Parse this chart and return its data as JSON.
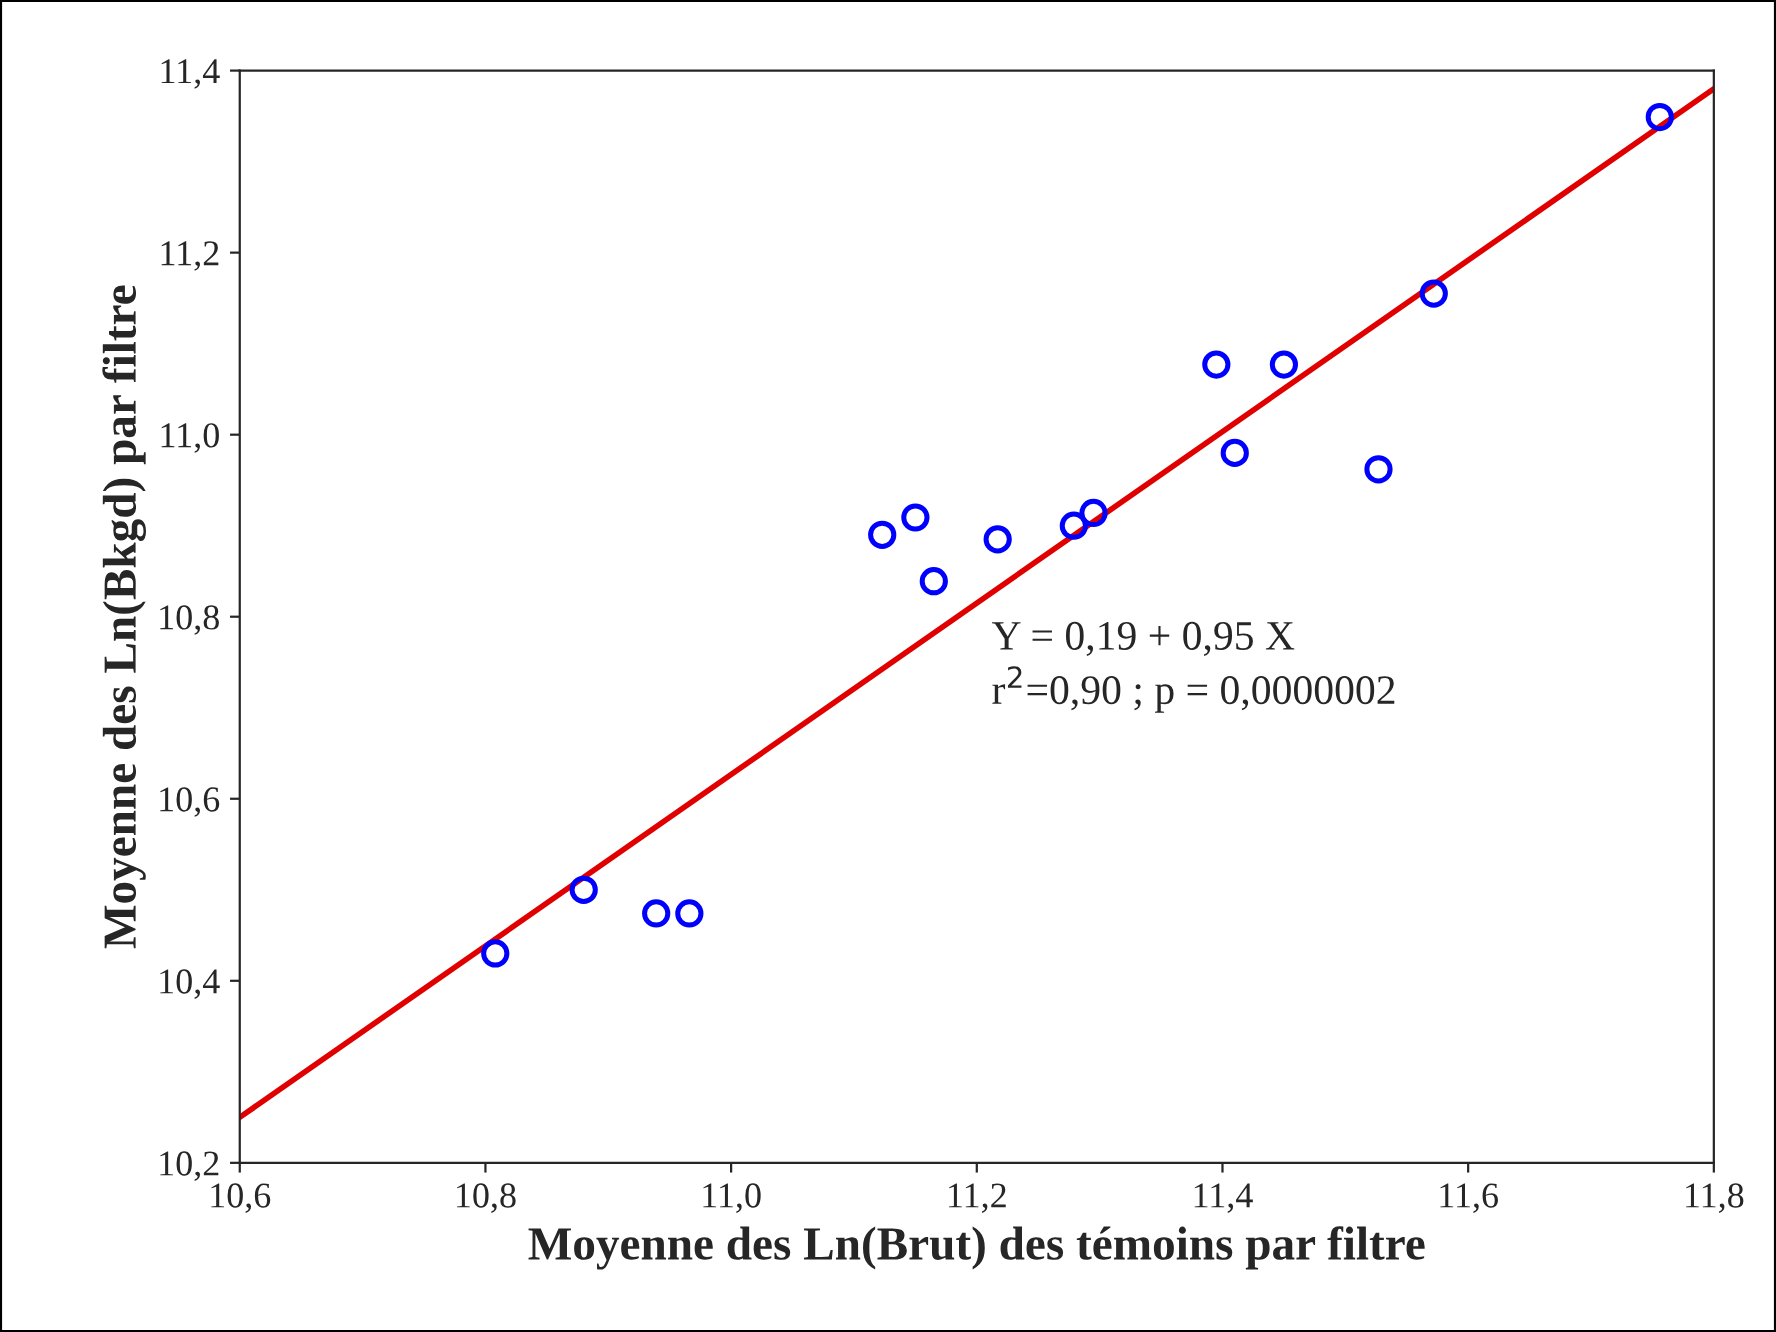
{
  "chart_data": {
    "type": "scatter",
    "xlabel": "Moyenne des Ln(Brut) des témoins par filtre",
    "ylabel": "Moyenne des Ln(Bkgd) par filtre",
    "annotations": [
      "Y = 0,19 + 0,95 X",
      "r$^{2}$=0,90 ; p = 0,0000002"
    ],
    "series": [
      {
        "color": "#0000ff",
        "marker": "circle",
        "x": [
          10.808,
          10.88,
          10.939,
          10.966,
          11.123,
          11.15,
          11.165,
          11.217,
          11.279,
          11.295,
          11.395,
          11.41,
          11.45,
          11.527,
          11.572,
          11.756
        ],
        "values": [
          10.43,
          10.5,
          10.474,
          10.474,
          10.89,
          10.909,
          10.839,
          10.885,
          10.9,
          10.914,
          11.077,
          10.98,
          11.077,
          10.962,
          11.155,
          11.349
        ]
      },
      {
        "type": "line",
        "color": "#e00000",
        "x": [
          10.6,
          11.8
        ],
        "values": [
          10.25,
          11.38
        ]
      }
    ],
    "xlim": [
      10.6,
      11.8
    ],
    "ylim": [
      10.2,
      11.4
    ],
    "xticks": [
      {
        "value": 10.6,
        "label": "10,6"
      },
      {
        "value": 10.8,
        "label": "10,8"
      },
      {
        "value": 11.0,
        "label": "11,0"
      },
      {
        "value": 11.2,
        "label": "11,2"
      },
      {
        "value": 11.4,
        "label": "11,4"
      },
      {
        "value": 11.6,
        "label": "11,6"
      },
      {
        "value": 11.8,
        "label": "11,8"
      }
    ],
    "yticks": [
      {
        "value": 10.2,
        "label": "10,2"
      },
      {
        "value": 10.4,
        "label": "10,4"
      },
      {
        "value": 10.6,
        "label": "10,6"
      },
      {
        "value": 10.8,
        "label": "10,8"
      },
      {
        "value": 11.0,
        "label": "11,0"
      },
      {
        "value": 11.2,
        "label": "11,2"
      },
      {
        "value": 11.4,
        "label": "11,4"
      }
    ],
    "grid": false,
    "legend": false
  }
}
